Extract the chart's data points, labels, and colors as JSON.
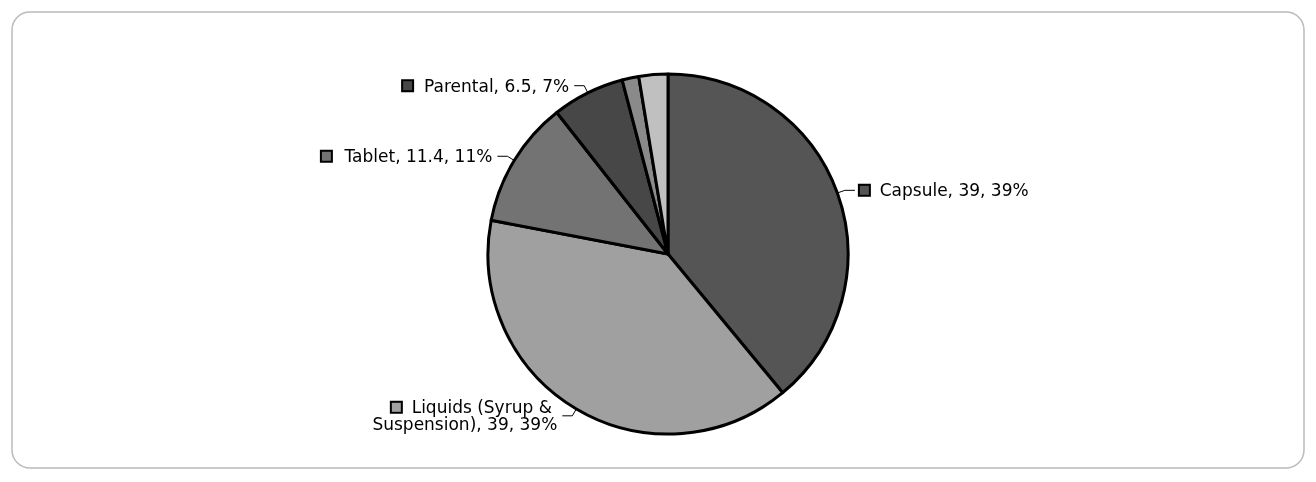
{
  "chart_data": {
    "type": "pie",
    "categories": [
      "Capsule",
      "Liquids (Syrup & Suspension)",
      "Tablet",
      "Parental",
      null,
      null
    ],
    "values": [
      39,
      39,
      11.4,
      6.5,
      1.5,
      2.6
    ],
    "value_labels": [
      "39, 39%",
      "39, 39%",
      "11.4, 11%",
      "6.5, 7%",
      null,
      null
    ],
    "legend": "left",
    "colors": [
      "#555555",
      "#a0a0a0",
      "#737373",
      "#474747",
      "#8a8a8a",
      "#c0c0c0"
    ]
  }
}
